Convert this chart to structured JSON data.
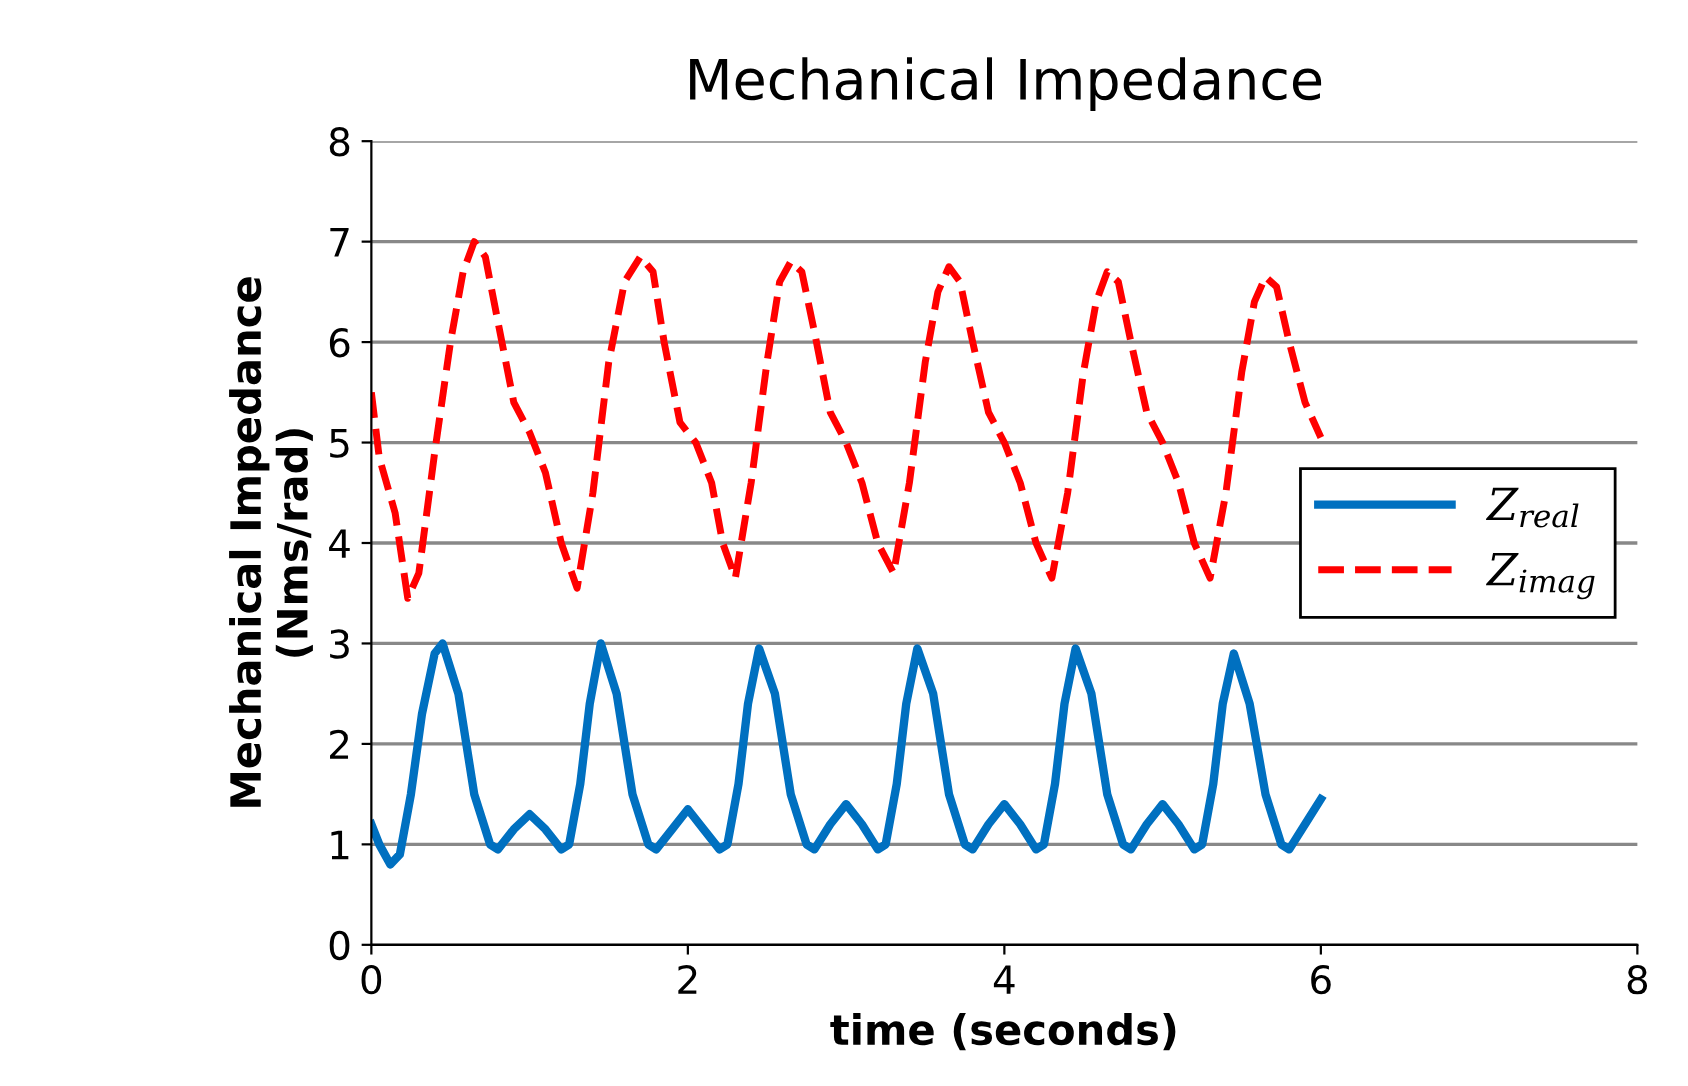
{
  "chart_data": {
    "type": "line",
    "title": "Mechanical Impedance",
    "xlabel": "time (seconds)",
    "ylabel": "Mechanical Impedance\n(Nms/rad)",
    "xlim": [
      0,
      8
    ],
    "ylim": [
      0,
      8
    ],
    "xticks": [
      0,
      2,
      4,
      6,
      8
    ],
    "yticks": [
      0,
      1,
      2,
      3,
      4,
      5,
      6,
      7,
      8
    ],
    "grid": "y",
    "legend": "right",
    "series": [
      {
        "name": "Z$_{real}$",
        "color": "#0070c0",
        "line_style": "solid",
        "x": [
          0,
          0.05,
          0.12,
          0.18,
          0.25,
          0.32,
          0.4,
          0.45,
          0.55,
          0.65,
          0.75,
          0.8,
          0.9,
          1.0,
          1.1,
          1.2,
          1.25,
          1.32,
          1.38,
          1.45,
          1.55,
          1.65,
          1.75,
          1.8,
          1.9,
          2.0,
          2.1,
          2.2,
          2.25,
          2.32,
          2.38,
          2.45,
          2.55,
          2.65,
          2.75,
          2.8,
          2.9,
          3.0,
          3.1,
          3.2,
          3.25,
          3.32,
          3.38,
          3.45,
          3.55,
          3.65,
          3.75,
          3.8,
          3.9,
          4.0,
          4.1,
          4.2,
          4.25,
          4.32,
          4.38,
          4.45,
          4.55,
          4.65,
          4.75,
          4.8,
          4.9,
          5.0,
          5.1,
          5.2,
          5.25,
          5.32,
          5.38,
          5.45,
          5.55,
          5.65,
          5.75,
          5.8,
          5.9,
          6.0
        ],
        "values": [
          1.2,
          1.0,
          0.8,
          0.9,
          1.5,
          2.3,
          2.9,
          3.0,
          2.5,
          1.5,
          1.0,
          0.95,
          1.15,
          1.3,
          1.15,
          0.95,
          1.0,
          1.6,
          2.4,
          3.0,
          2.5,
          1.5,
          1.0,
          0.95,
          1.15,
          1.35,
          1.15,
          0.95,
          1.0,
          1.6,
          2.4,
          2.95,
          2.5,
          1.5,
          1.0,
          0.95,
          1.2,
          1.4,
          1.2,
          0.95,
          1.0,
          1.6,
          2.4,
          2.95,
          2.5,
          1.5,
          1.0,
          0.95,
          1.2,
          1.4,
          1.2,
          0.95,
          1.0,
          1.6,
          2.4,
          2.95,
          2.5,
          1.5,
          1.0,
          0.95,
          1.2,
          1.4,
          1.2,
          0.95,
          1.0,
          1.6,
          2.4,
          2.9,
          2.4,
          1.5,
          1.0,
          0.95,
          1.2,
          1.45
        ]
      },
      {
        "name": "Z$_{imag}$",
        "color": "#ff0000",
        "line_style": "dashed",
        "x": [
          0,
          0.05,
          0.15,
          0.23,
          0.3,
          0.4,
          0.5,
          0.58,
          0.65,
          0.72,
          0.8,
          0.9,
          1.0,
          1.1,
          1.2,
          1.3,
          1.4,
          1.5,
          1.6,
          1.7,
          1.78,
          1.85,
          1.95,
          2.05,
          2.15,
          2.22,
          2.3,
          2.4,
          2.5,
          2.58,
          2.65,
          2.72,
          2.8,
          2.9,
          3.0,
          3.1,
          3.2,
          3.3,
          3.4,
          3.5,
          3.58,
          3.65,
          3.72,
          3.8,
          3.9,
          4.0,
          4.1,
          4.2,
          4.3,
          4.4,
          4.5,
          4.58,
          4.65,
          4.72,
          4.8,
          4.9,
          5.0,
          5.1,
          5.2,
          5.3,
          5.4,
          5.5,
          5.58,
          5.65,
          5.72,
          5.8,
          5.9,
          6.0
        ],
        "values": [
          5.5,
          4.85,
          4.3,
          3.45,
          3.7,
          4.9,
          6.0,
          6.7,
          7.0,
          6.85,
          6.2,
          5.4,
          5.1,
          4.7,
          4.0,
          3.55,
          4.5,
          5.8,
          6.6,
          6.85,
          6.7,
          6.0,
          5.2,
          5.0,
          4.6,
          4.0,
          3.65,
          4.6,
          5.8,
          6.6,
          6.8,
          6.7,
          6.1,
          5.3,
          5.0,
          4.6,
          4.0,
          3.7,
          4.6,
          5.8,
          6.5,
          6.75,
          6.6,
          6.0,
          5.3,
          5.0,
          4.6,
          4.0,
          3.65,
          4.5,
          5.7,
          6.4,
          6.7,
          6.6,
          6.0,
          5.3,
          5.0,
          4.6,
          4.0,
          3.65,
          4.5,
          5.7,
          6.4,
          6.65,
          6.55,
          6.0,
          5.4,
          5.05
        ]
      }
    ]
  }
}
